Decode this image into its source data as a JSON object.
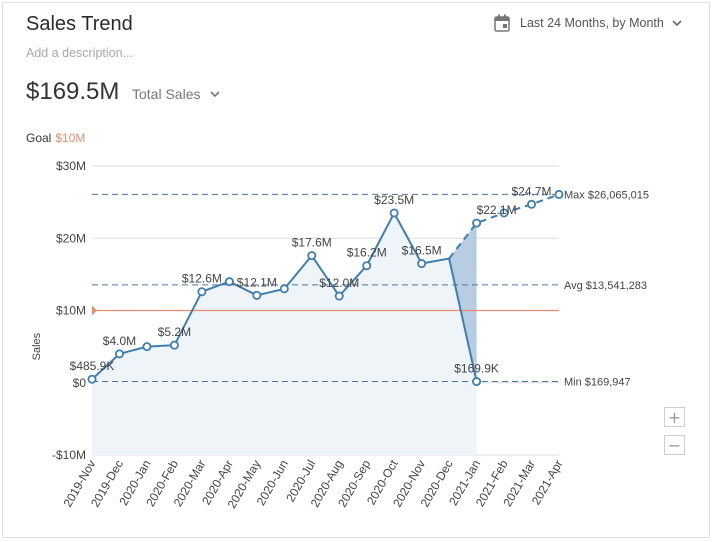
{
  "header": {
    "title": "Sales Trend",
    "description_placeholder": "Add a description...",
    "period": "Last 24 Months, by Month"
  },
  "summary": {
    "total_value": "$169.5M",
    "metric_label": "Total Sales"
  },
  "goal": {
    "label": "Goal",
    "value_label": "$10M",
    "value": 10000000
  },
  "zoom": {
    "in": "+",
    "out": "−"
  },
  "colors": {
    "line": "#3f7eb0",
    "area": "#eef4f8",
    "goal": "#e58d6e",
    "forecast_drop": "#a9c4dd",
    "ref_line": "#4a78a8"
  },
  "chart_data": {
    "type": "line",
    "ylabel": "Sales",
    "xlabel": "",
    "ylim": [
      -10000000,
      30000000
    ],
    "yticks": [
      {
        "value": 30000000,
        "label": "$30M"
      },
      {
        "value": 20000000,
        "label": "$20M"
      },
      {
        "value": 10000000,
        "label": "$10M"
      },
      {
        "value": 0,
        "label": "$0"
      },
      {
        "value": -10000000,
        "label": "-$10M"
      }
    ],
    "categories": [
      "2019-Nov",
      "2019-Dec",
      "2020-Jan",
      "2020-Feb",
      "2020-Mar",
      "2020-Apr",
      "2020-May",
      "2020-Jun",
      "2020-Jul",
      "2020-Aug",
      "2020-Sep",
      "2020-Oct",
      "2020-Nov",
      "2020-Dec",
      "2021-Jan",
      "2021-Feb",
      "2021-Mar",
      "2021-Apr"
    ],
    "values": [
      485900,
      4000000,
      5000000,
      5200000,
      12600000,
      14000000,
      12100000,
      13000000,
      17600000,
      12000000,
      16200000,
      23500000,
      16500000,
      17200000,
      169900,
      23500000,
      24700000,
      26065015
    ],
    "data_labels": [
      {
        "index": 0,
        "text": "$485.9K"
      },
      {
        "index": 1,
        "text": "$4.0M"
      },
      {
        "index": 3,
        "text": "$5.2M"
      },
      {
        "index": 4,
        "text": "$12.6M"
      },
      {
        "index": 6,
        "text": "$12.1M"
      },
      {
        "index": 8,
        "text": "$17.6M"
      },
      {
        "index": 9,
        "text": "$12.0M"
      },
      {
        "index": 10,
        "text": "$16.2M"
      },
      {
        "index": 11,
        "text": "$23.5M"
      },
      {
        "index": 12,
        "text": "$16.5M"
      },
      {
        "index": 14,
        "text": "$169.9K"
      },
      {
        "index": 16,
        "text": "$24.7M"
      }
    ],
    "forecast": {
      "points": [
        {
          "index": 13,
          "value": 17200000
        },
        {
          "index": 14,
          "value": 22100000
        },
        {
          "index": 15,
          "value": 23500000
        },
        {
          "index": 16,
          "value": 24700000
        },
        {
          "index": 17,
          "value": 26065015
        }
      ],
      "labels": [
        {
          "index": 14,
          "text": "$22.1M"
        }
      ]
    },
    "reference_lines": [
      {
        "name": "Max",
        "value": 26065015,
        "label": "Max $26,065,015"
      },
      {
        "name": "Avg",
        "value": 13541283,
        "label": "Avg $13,541,283"
      },
      {
        "name": "Min",
        "value": 169947,
        "label": "Min $169,947"
      }
    ],
    "grid": true
  }
}
